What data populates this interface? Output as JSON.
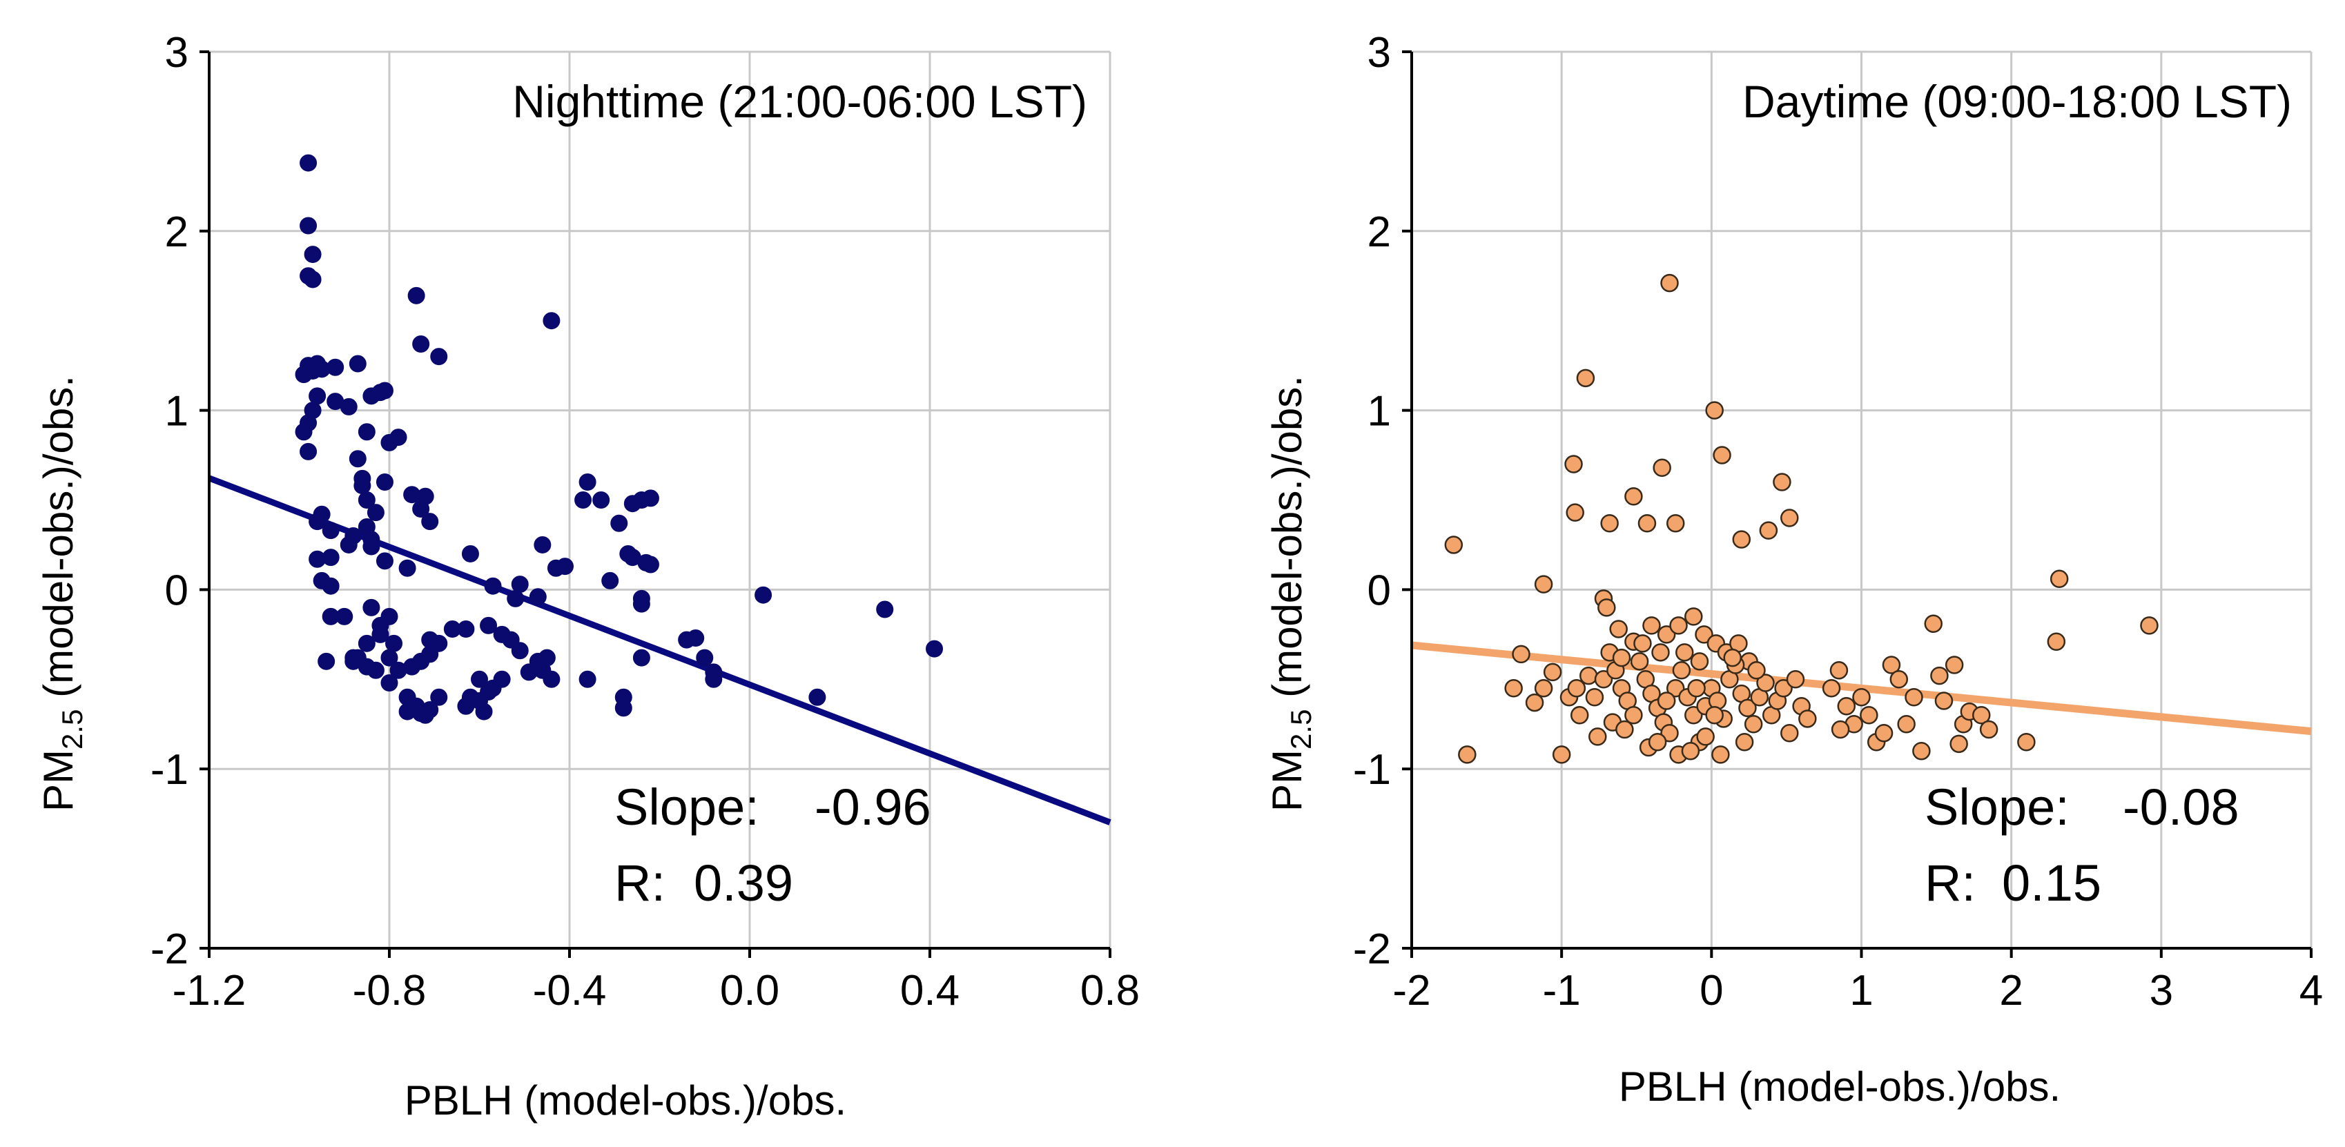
{
  "chart_data": [
    {
      "type": "scatter",
      "title": "Nighttime (21:00-06:00 LST)",
      "xlabel": "PBLH (model-obs.)/obs.",
      "ylabel_pre": "PM",
      "ylabel_sub": "2.5",
      "ylabel_post": " (model-obs.)/obs.",
      "xlim": [
        -1.2,
        0.8
      ],
      "ylim": [
        -2,
        3
      ],
      "xticks": [
        -1.2,
        -0.8,
        -0.4,
        0.0,
        0.4,
        0.8
      ],
      "xtick_labels": [
        "-1.2",
        "-0.8",
        "-0.4",
        "0.0",
        "0.4",
        "0.8"
      ],
      "yticks": [
        -2,
        -1,
        0,
        1,
        2,
        3
      ],
      "ytick_labels": [
        "-2",
        "-1",
        "0",
        "1",
        "2",
        "3"
      ],
      "grid": true,
      "marker_color": "#0a0a6e",
      "marker_stroke": "#0a0a6e",
      "line_color": "#0a0a80",
      "fit": {
        "slope": -0.96,
        "intercept": -0.53
      },
      "stats": {
        "slope_label": "Slope:",
        "slope_value": "-0.96",
        "r_label": "R:",
        "r_value": "0.39"
      },
      "points": [
        [
          -0.98,
          2.38
        ],
        [
          -0.98,
          2.03
        ],
        [
          -0.97,
          1.87
        ],
        [
          -0.98,
          1.75
        ],
        [
          -0.97,
          1.73
        ],
        [
          -0.98,
          1.25
        ],
        [
          -0.97,
          1.22
        ],
        [
          -0.96,
          1.26
        ],
        [
          -0.99,
          1.2
        ],
        [
          -0.97,
          1.0
        ],
        [
          -0.98,
          0.93
        ],
        [
          -0.99,
          0.88
        ],
        [
          -0.98,
          0.77
        ],
        [
          -0.96,
          1.08
        ],
        [
          -0.95,
          1.23
        ],
        [
          -0.92,
          1.24
        ],
        [
          -0.87,
          1.26
        ],
        [
          -0.92,
          1.05
        ],
        [
          -0.89,
          1.02
        ],
        [
          -0.82,
          1.1
        ],
        [
          -0.81,
          1.11
        ],
        [
          -0.84,
          1.08
        ],
        [
          -0.74,
          1.64
        ],
        [
          -0.73,
          1.37
        ],
        [
          -0.69,
          1.3
        ],
        [
          -0.85,
          0.88
        ],
        [
          -0.87,
          0.73
        ],
        [
          -0.8,
          0.82
        ],
        [
          -0.78,
          0.85
        ],
        [
          -0.86,
          0.62
        ],
        [
          -0.85,
          0.5
        ],
        [
          -0.83,
          0.43
        ],
        [
          -0.86,
          0.58
        ],
        [
          -0.81,
          0.6
        ],
        [
          -0.75,
          0.53
        ],
        [
          -0.72,
          0.52
        ],
        [
          -0.73,
          0.45
        ],
        [
          -0.71,
          0.38
        ],
        [
          -0.96,
          0.38
        ],
        [
          -0.95,
          0.42
        ],
        [
          -0.93,
          0.33
        ],
        [
          -0.96,
          0.17
        ],
        [
          -0.93,
          0.18
        ],
        [
          -0.89,
          0.25
        ],
        [
          -0.88,
          0.3
        ],
        [
          -0.84,
          0.28
        ],
        [
          -0.81,
          0.16
        ],
        [
          -0.76,
          0.12
        ],
        [
          -0.95,
          0.05
        ],
        [
          -0.93,
          0.02
        ],
        [
          -0.85,
          0.35
        ],
        [
          -0.84,
          0.24
        ],
        [
          -0.62,
          0.2
        ],
        [
          -0.57,
          0.02
        ],
        [
          -0.51,
          0.03
        ],
        [
          -0.52,
          -0.05
        ],
        [
          -0.47,
          -0.04
        ],
        [
          -0.44,
          1.5
        ],
        [
          -0.46,
          0.25
        ],
        [
          -0.43,
          0.12
        ],
        [
          -0.41,
          0.13
        ],
        [
          -0.36,
          0.6
        ],
        [
          -0.37,
          0.5
        ],
        [
          -0.33,
          0.5
        ],
        [
          -0.29,
          0.37
        ],
        [
          -0.26,
          0.48
        ],
        [
          -0.24,
          0.5
        ],
        [
          -0.22,
          0.51
        ],
        [
          -0.27,
          0.2
        ],
        [
          -0.26,
          0.18
        ],
        [
          -0.23,
          0.15
        ],
        [
          -0.22,
          0.14
        ],
        [
          -0.31,
          0.05
        ],
        [
          -0.24,
          -0.05
        ],
        [
          -0.24,
          -0.08
        ],
        [
          -0.14,
          -0.28
        ],
        [
          -0.12,
          -0.27
        ],
        [
          -0.1,
          -0.38
        ],
        [
          -0.08,
          -0.46
        ],
        [
          -0.08,
          -0.5
        ],
        [
          -0.24,
          -0.38
        ],
        [
          -0.28,
          -0.6
        ],
        [
          -0.28,
          -0.66
        ],
        [
          -0.36,
          -0.5
        ],
        [
          -0.44,
          -0.5
        ],
        [
          -0.46,
          -0.45
        ],
        [
          -0.45,
          -0.38
        ],
        [
          -0.47,
          -0.4
        ],
        [
          -0.49,
          -0.46
        ],
        [
          -0.51,
          -0.34
        ],
        [
          -0.53,
          -0.28
        ],
        [
          -0.55,
          -0.5
        ],
        [
          -0.57,
          -0.55
        ],
        [
          -0.59,
          -0.68
        ],
        [
          -0.6,
          -0.62
        ],
        [
          -0.62,
          -0.6
        ],
        [
          -0.63,
          -0.65
        ],
        [
          -0.6,
          -0.5
        ],
        [
          -0.58,
          -0.57
        ],
        [
          -0.55,
          -0.25
        ],
        [
          -0.58,
          -0.2
        ],
        [
          -0.63,
          -0.22
        ],
        [
          -0.66,
          -0.22
        ],
        [
          -0.69,
          -0.3
        ],
        [
          -0.71,
          -0.28
        ],
        [
          -0.71,
          -0.36
        ],
        [
          -0.73,
          -0.4
        ],
        [
          -0.75,
          -0.43
        ],
        [
          -0.78,
          -0.45
        ],
        [
          -0.76,
          -0.6
        ],
        [
          -0.74,
          -0.65
        ],
        [
          -0.73,
          -0.69
        ],
        [
          -0.71,
          -0.67
        ],
        [
          -0.69,
          -0.6
        ],
        [
          -0.72,
          -0.7
        ],
        [
          -0.76,
          -0.68
        ],
        [
          -0.8,
          -0.52
        ],
        [
          -0.83,
          -0.45
        ],
        [
          -0.85,
          -0.43
        ],
        [
          -0.87,
          -0.38
        ],
        [
          -0.85,
          -0.3
        ],
        [
          -0.82,
          -0.2
        ],
        [
          -0.82,
          -0.25
        ],
        [
          -0.79,
          -0.3
        ],
        [
          -0.8,
          -0.38
        ],
        [
          -0.88,
          -0.4
        ],
        [
          -0.94,
          -0.4
        ],
        [
          -0.93,
          -0.15
        ],
        [
          -0.9,
          -0.15
        ],
        [
          -0.88,
          -0.38
        ],
        [
          -0.8,
          -0.15
        ],
        [
          -0.84,
          -0.1
        ],
        [
          0.03,
          -0.03
        ],
        [
          0.15,
          -0.6
        ],
        [
          0.3,
          -0.11
        ],
        [
          0.41,
          -0.33
        ]
      ]
    },
    {
      "type": "scatter",
      "title": "Daytime (09:00-18:00 LST)",
      "xlabel": "PBLH (model-obs.)/obs.",
      "ylabel_pre": "PM",
      "ylabel_sub": "2.5",
      "ylabel_post": " (model-obs.)/obs.",
      "xlim": [
        -2,
        4
      ],
      "ylim": [
        -2,
        3
      ],
      "xticks": [
        -2,
        -1,
        0,
        1,
        2,
        3,
        4
      ],
      "xtick_labels": [
        "-2",
        "-1",
        "0",
        "1",
        "2",
        "3",
        "4"
      ],
      "yticks": [
        -2,
        -1,
        0,
        1,
        2,
        3
      ],
      "ytick_labels": [
        "-2",
        "-1",
        "0",
        "1",
        "2",
        "3"
      ],
      "grid": true,
      "marker_color": "#f3a46a",
      "marker_stroke": "#3a2a1a",
      "line_color": "#f3a46a",
      "fit": {
        "slope": -0.08,
        "intercept": -0.47
      },
      "stats": {
        "slope_label": "Slope:",
        "slope_value": "-0.08",
        "r_label": "R:",
        "r_value": "0.15"
      },
      "points": [
        [
          -1.72,
          0.25
        ],
        [
          -1.63,
          -0.92
        ],
        [
          -1.12,
          0.03
        ],
        [
          -1.27,
          -0.36
        ],
        [
          -1.32,
          -0.55
        ],
        [
          -1.18,
          -0.63
        ],
        [
          -1.12,
          -0.55
        ],
        [
          -1.06,
          -0.46
        ],
        [
          -1.0,
          -0.92
        ],
        [
          -0.95,
          -0.6
        ],
        [
          -0.92,
          0.7
        ],
        [
          -0.91,
          0.43
        ],
        [
          -0.84,
          1.18
        ],
        [
          -0.68,
          0.37
        ],
        [
          -0.52,
          0.52
        ],
        [
          -0.43,
          0.37
        ],
        [
          -0.33,
          0.68
        ],
        [
          -0.28,
          1.71
        ],
        [
          -0.24,
          0.37
        ],
        [
          0.02,
          1.0
        ],
        [
          0.07,
          0.75
        ],
        [
          0.2,
          0.28
        ],
        [
          0.38,
          0.33
        ],
        [
          0.47,
          0.6
        ],
        [
          0.52,
          0.4
        ],
        [
          -0.72,
          -0.05
        ],
        [
          -0.7,
          -0.1
        ],
        [
          -0.62,
          -0.22
        ],
        [
          -0.52,
          -0.29
        ],
        [
          -0.4,
          -0.2
        ],
        [
          -0.3,
          -0.25
        ],
        [
          -0.22,
          -0.2
        ],
        [
          -0.12,
          -0.15
        ],
        [
          -0.05,
          -0.25
        ],
        [
          0.03,
          -0.3
        ],
        [
          0.1,
          -0.35
        ],
        [
          0.18,
          -0.3
        ],
        [
          0.25,
          -0.4
        ],
        [
          -0.9,
          -0.55
        ],
        [
          -0.82,
          -0.48
        ],
        [
          -0.78,
          -0.6
        ],
        [
          -0.72,
          -0.5
        ],
        [
          -0.68,
          -0.35
        ],
        [
          -0.64,
          -0.45
        ],
        [
          -0.6,
          -0.55
        ],
        [
          -0.56,
          -0.62
        ],
        [
          -0.52,
          -0.7
        ],
        [
          -0.48,
          -0.4
        ],
        [
          -0.44,
          -0.5
        ],
        [
          -0.4,
          -0.58
        ],
        [
          -0.36,
          -0.66
        ],
        [
          -0.32,
          -0.74
        ],
        [
          -0.28,
          -0.8
        ],
        [
          -0.24,
          -0.55
        ],
        [
          -0.2,
          -0.45
        ],
        [
          -0.16,
          -0.6
        ],
        [
          -0.12,
          -0.7
        ],
        [
          -0.08,
          -0.85
        ],
        [
          -0.04,
          -0.65
        ],
        [
          0.0,
          -0.55
        ],
        [
          0.04,
          -0.62
        ],
        [
          0.08,
          -0.72
        ],
        [
          0.12,
          -0.5
        ],
        [
          0.16,
          -0.42
        ],
        [
          0.2,
          -0.58
        ],
        [
          0.24,
          -0.66
        ],
        [
          0.28,
          -0.75
        ],
        [
          0.32,
          -0.6
        ],
        [
          0.36,
          -0.52
        ],
        [
          0.4,
          -0.7
        ],
        [
          0.44,
          -0.62
        ],
        [
          0.48,
          -0.55
        ],
        [
          0.52,
          -0.8
        ],
        [
          0.56,
          -0.5
        ],
        [
          0.6,
          -0.65
        ],
        [
          0.64,
          -0.72
        ],
        [
          -0.88,
          -0.7
        ],
        [
          -0.76,
          -0.82
        ],
        [
          -0.66,
          -0.74
        ],
        [
          -0.58,
          -0.78
        ],
        [
          -0.42,
          -0.88
        ],
        [
          -0.36,
          -0.85
        ],
        [
          -0.22,
          -0.92
        ],
        [
          -0.14,
          -0.9
        ],
        [
          -0.04,
          -0.82
        ],
        [
          0.06,
          -0.92
        ],
        [
          -0.46,
          -0.3
        ],
        [
          -0.34,
          -0.35
        ],
        [
          -0.18,
          -0.35
        ],
        [
          -0.08,
          -0.4
        ],
        [
          0.14,
          -0.38
        ],
        [
          0.3,
          -0.45
        ],
        [
          -0.3,
          -0.62
        ],
        [
          -0.1,
          -0.55
        ],
        [
          0.02,
          -0.7
        ],
        [
          0.22,
          -0.85
        ],
        [
          -0.6,
          -0.38
        ],
        [
          0.8,
          -0.55
        ],
        [
          0.85,
          -0.45
        ],
        [
          0.9,
          -0.65
        ],
        [
          0.95,
          -0.75
        ],
        [
          1.0,
          -0.6
        ],
        [
          1.05,
          -0.7
        ],
        [
          1.1,
          -0.85
        ],
        [
          1.2,
          -0.42
        ],
        [
          1.25,
          -0.5
        ],
        [
          1.3,
          -0.75
        ],
        [
          1.35,
          -0.6
        ],
        [
          1.4,
          -0.9
        ],
        [
          1.48,
          -0.19
        ],
        [
          1.52,
          -0.48
        ],
        [
          1.55,
          -0.62
        ],
        [
          1.62,
          -0.42
        ],
        [
          1.68,
          -0.75
        ],
        [
          1.72,
          -0.68
        ],
        [
          1.8,
          -0.7
        ],
        [
          1.85,
          -0.78
        ],
        [
          2.1,
          -0.85
        ],
        [
          2.3,
          -0.29
        ],
        [
          2.32,
          0.06
        ],
        [
          2.92,
          -0.2
        ],
        [
          1.65,
          -0.86
        ],
        [
          0.86,
          -0.78
        ],
        [
          1.15,
          -0.8
        ]
      ]
    }
  ]
}
